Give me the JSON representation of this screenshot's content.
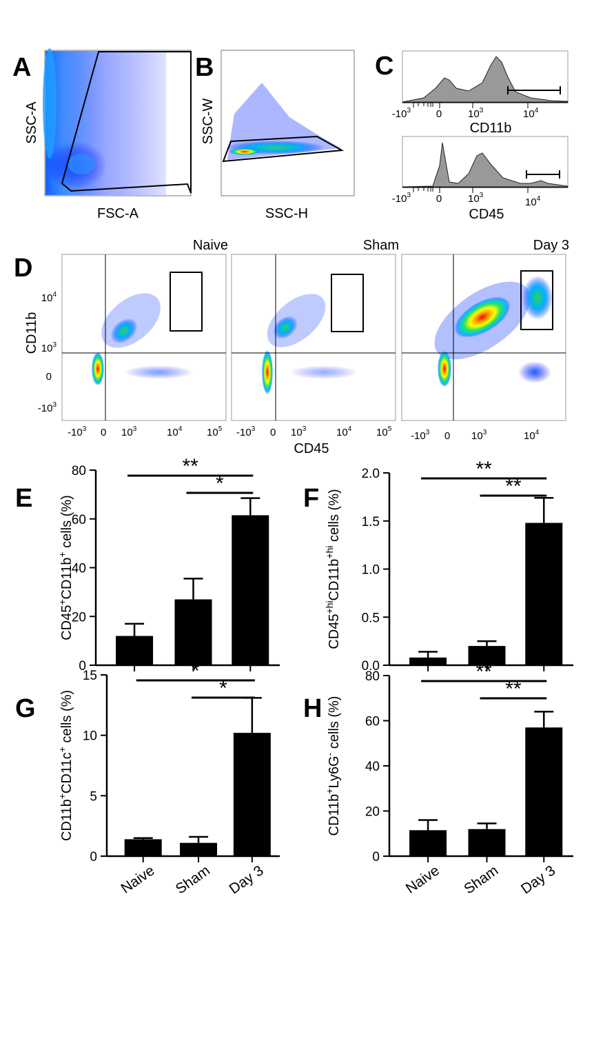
{
  "panels": {
    "A": {
      "letter": "A",
      "xlabel": "FSC-A",
      "ylabel": "SSC-A"
    },
    "B": {
      "letter": "B",
      "xlabel": "SSC-H",
      "ylabel": "SSC-W"
    },
    "C": {
      "letter": "C",
      "top": {
        "xlabel": "CD11b",
        "ticks": [
          "-10",
          "3",
          "0",
          "10",
          "3",
          "10",
          "4"
        ]
      },
      "bottom": {
        "xlabel": "CD45"
      }
    },
    "D": {
      "letter": "D",
      "ylabel": "CD11b",
      "xlabel": "CD45",
      "groups": [
        "Naive",
        "Sham",
        "Day 3"
      ],
      "xticks": [
        {
          "base": "-10",
          "exp": "3"
        },
        {
          "base": "0",
          "exp": ""
        },
        {
          "base": "10",
          "exp": "3"
        },
        {
          "base": "10",
          "exp": "4"
        },
        {
          "base": "10",
          "exp": "5"
        }
      ],
      "yticks": [
        {
          "base": "10",
          "exp": "4"
        },
        {
          "base": "10",
          "exp": "3"
        },
        {
          "base": "0",
          "exp": ""
        },
        {
          "base": "-10",
          "exp": "3"
        }
      ]
    }
  },
  "chart_data": [
    {
      "type": "bar",
      "panel": "E",
      "letter": "E",
      "categories": [
        "Naive",
        "Sham",
        "Day 3"
      ],
      "values": [
        12,
        27,
        61.5
      ],
      "errors": [
        5,
        8.5,
        7
      ],
      "ylabel": {
        "t1": "CD45",
        "s1": "+",
        "t2": "CD11b",
        "s2": "+",
        "t3": " cells (%)"
      },
      "ylim": [
        0,
        80
      ],
      "yticks": [
        "0",
        "20",
        "40",
        "60",
        "80"
      ],
      "ytick_values": [
        0,
        20,
        40,
        60,
        80
      ],
      "significance": [
        {
          "from": 0,
          "to": 2,
          "label": "**"
        },
        {
          "from": 1,
          "to": 2,
          "label": "*"
        }
      ]
    },
    {
      "type": "bar",
      "panel": "F",
      "letter": "F",
      "categories": [
        "Naive",
        "Sham",
        "Day 3"
      ],
      "values": [
        0.08,
        0.2,
        1.48
      ],
      "errors": [
        0.06,
        0.05,
        0.26
      ],
      "ylabel": {
        "t1": "CD45",
        "s1": "+hi",
        "t2": "CD11b",
        "s2": "+hi",
        "t3": " cells (%)"
      },
      "ylim": [
        0,
        2
      ],
      "yticks": [
        "0.0",
        "0.5",
        "1.0",
        "1.5",
        "2.0"
      ],
      "ytick_values": [
        0,
        0.5,
        1.0,
        1.5,
        2.0
      ],
      "significance": [
        {
          "from": 0,
          "to": 2,
          "label": "**"
        },
        {
          "from": 1,
          "to": 2,
          "label": "**"
        }
      ]
    },
    {
      "type": "bar",
      "panel": "G",
      "letter": "G",
      "categories": [
        "Naive",
        "Sham",
        "Day 3"
      ],
      "values": [
        1.4,
        1.1,
        10.2
      ],
      "errors": [
        0.1,
        0.5,
        2.9
      ],
      "ylabel": {
        "t1": "CD11b",
        "s1": "+",
        "t2": "CD11c",
        "s2": "+",
        "t3": " cells (%)"
      },
      "ylim": [
        0,
        15
      ],
      "yticks": [
        "0",
        "5",
        "10",
        "15"
      ],
      "ytick_values": [
        0,
        5,
        10,
        15
      ],
      "significance": [
        {
          "from": 0,
          "to": 2,
          "label": "*"
        },
        {
          "from": 1,
          "to": 2,
          "label": "*"
        }
      ]
    },
    {
      "type": "bar",
      "panel": "H",
      "letter": "H",
      "categories": [
        "Naive",
        "Sham",
        "Day 3"
      ],
      "values": [
        11.5,
        12,
        57
      ],
      "errors": [
        4.5,
        2.5,
        7
      ],
      "ylabel": {
        "t1": "CD11b",
        "s1": "+",
        "t2": "Ly6G",
        "s2": "-",
        "t3": " cells (%)"
      },
      "ylim": [
        0,
        80
      ],
      "yticks": [
        "0",
        "20",
        "40",
        "60",
        "80"
      ],
      "ytick_values": [
        0,
        20,
        40,
        60,
        80
      ],
      "significance": [
        {
          "from": 0,
          "to": 2,
          "label": "**"
        },
        {
          "from": 1,
          "to": 2,
          "label": "**"
        }
      ]
    }
  ],
  "colors": {
    "bar": "#000000",
    "histogram_fill": "#999999",
    "density_low": "#0000ff",
    "density_high": "#ff0000"
  }
}
